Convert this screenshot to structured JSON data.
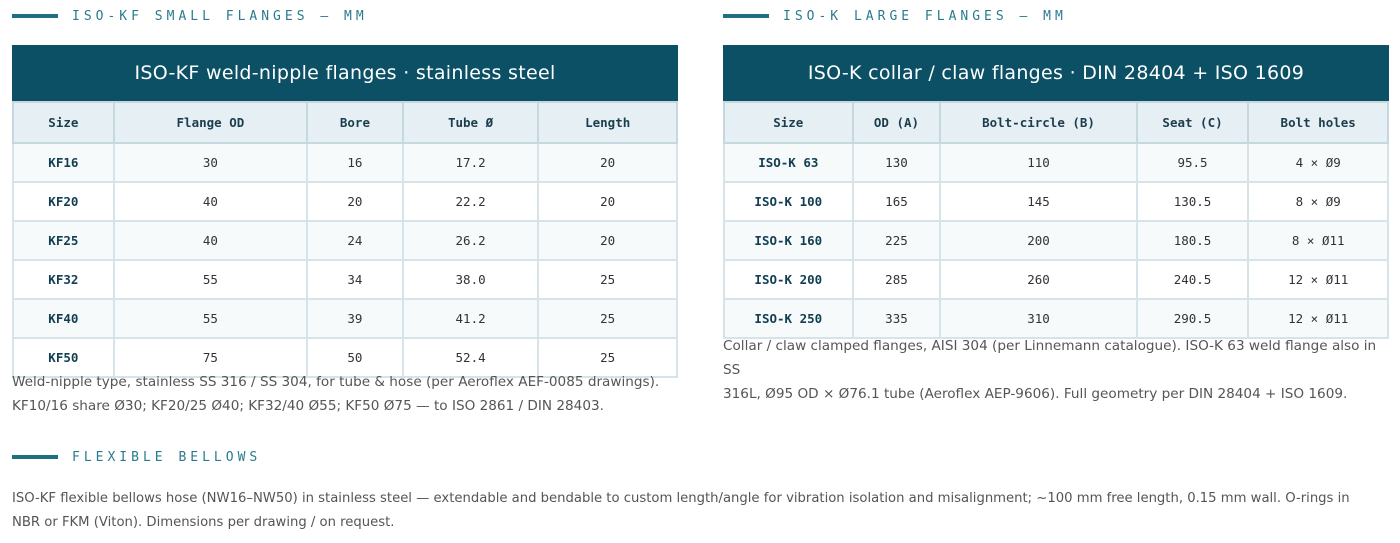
{
  "left": {
    "section_label": "ISO-KF SMALL FLANGES — MM",
    "title": "ISO-KF weld-nipple flanges · stainless steel",
    "columns": [
      "Size",
      "Flange OD",
      "Bore",
      "Tube Ø",
      "Length"
    ],
    "rows": [
      [
        "KF16",
        "30",
        "16",
        "17.2",
        "20"
      ],
      [
        "KF20",
        "40",
        "20",
        "22.2",
        "20"
      ],
      [
        "KF25",
        "40",
        "24",
        "26.2",
        "20"
      ],
      [
        "KF32",
        "55",
        "34",
        "38.0",
        "25"
      ],
      [
        "KF40",
        "55",
        "39",
        "41.2",
        "25"
      ],
      [
        "KF50",
        "75",
        "50",
        "52.4",
        "25"
      ]
    ],
    "note_line1": "Weld-nipple type, stainless SS 316 / SS 304, for tube & hose (per Aeroflex AEF-0085 drawings).",
    "note_line2": "KF10/16 share Ø30; KF20/25 Ø40; KF32/40 Ø55; KF50 Ø75 — to ISO 2861 / DIN 28403."
  },
  "right": {
    "section_label": "ISO-K LARGE FLANGES — MM",
    "title": "ISO-K collar / claw flanges · DIN 28404 + ISO 1609",
    "columns": [
      "Size",
      "OD (A)",
      "Bolt-circle (B)",
      "Seat (C)",
      "Bolt holes"
    ],
    "rows": [
      [
        "ISO-K 63",
        "130",
        "110",
        "95.5",
        "4 × Ø9"
      ],
      [
        "ISO-K 100",
        "165",
        "145",
        "130.5",
        "8 × Ø9"
      ],
      [
        "ISO-K 160",
        "225",
        "200",
        "180.5",
        "8 × Ø11"
      ],
      [
        "ISO-K 200",
        "285",
        "260",
        "240.5",
        "12 × Ø11"
      ],
      [
        "ISO-K 250",
        "335",
        "310",
        "290.5",
        "12 × Ø11"
      ]
    ],
    "note_line1": "Collar / claw clamped flanges, AISI 304 (per Linnemann catalogue). ISO-K 63 weld flange also in SS",
    "note_line2": "316L, Ø95 OD × Ø76.1 tube (Aeroflex AEP-9606). Full geometry per DIN 28404 + ISO 1609."
  },
  "bellows": {
    "section_label": "FLEXIBLE BELLOWS",
    "note_line1": "ISO-KF flexible bellows hose (NW16–NW50) in stainless steel — extendable and bendable to custom length/angle for vibration isolation and misalignment; ~100 mm free length, 0.15 mm wall. O-rings in",
    "note_line2": "NBR or FKM (Viton). Dimensions per drawing / on request."
  }
}
